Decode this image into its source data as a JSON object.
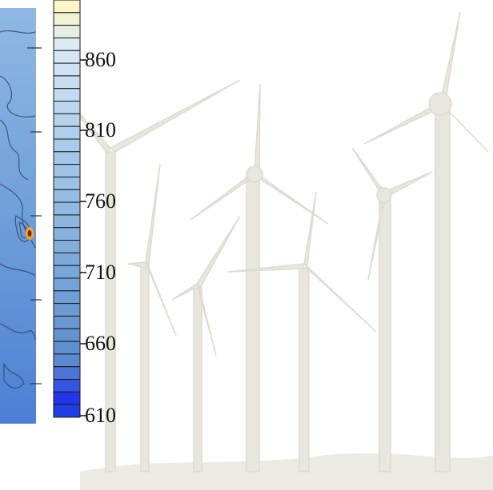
{
  "colorbar": {
    "tick_labels": [
      "860",
      "810",
      "760",
      "710",
      "660",
      "610"
    ],
    "colors_top_to_bottom": [
      "#fbf6c8",
      "#f1f3d6",
      "#e6eee3",
      "#dceaf2",
      "#d5e5f4",
      "#cfe1f3",
      "#c9ddf1",
      "#c2d9ef",
      "#bcd6ee",
      "#b6d2ec",
      "#b0cfeb",
      "#aacbea",
      "#a5c8e8",
      "#a0c4e7",
      "#9bc1e5",
      "#95bde3",
      "#90b9e2",
      "#8cb6e0",
      "#87b2de",
      "#82aedc",
      "#7daadb",
      "#79a7d9",
      "#74a3d7",
      "#709fd5",
      "#6c9bd3",
      "#6897d2",
      "#6493d0",
      "#608fcf",
      "#5b89cf",
      "#4c74d6",
      "#3455e0",
      "#2235e8",
      "#1f3fe4"
    ]
  },
  "map": {
    "background_color": "#5b8fd0",
    "hotspot_colors": [
      "#f5a623",
      "#c0392b"
    ]
  },
  "decoration": {
    "turbine_color": "#e5e3da"
  }
}
